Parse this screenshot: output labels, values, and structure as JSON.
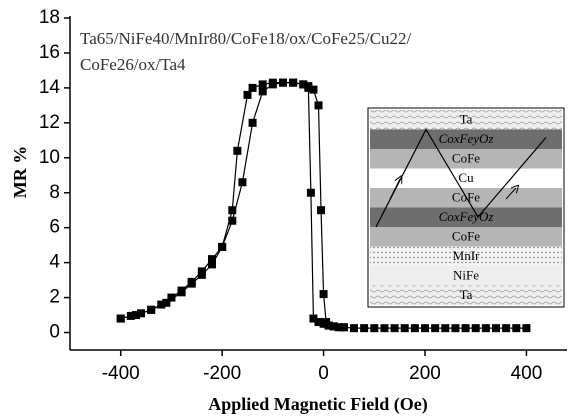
{
  "chart_data": {
    "type": "line",
    "x_label": "Applied Magnetic Field (Oe)",
    "y_label": "MR %",
    "annotation": [
      "Ta65/NiFe40/MnIr80/CoFe18/ox/CoFe25/Cu22/",
      "CoFe26/ox/Ta4"
    ],
    "inset_layers": [
      "Ta",
      "CoxFeyOz",
      "CoFe",
      "Cu",
      "CoFe",
      "CoxFeyOz",
      "CoFe",
      "MnIr",
      "NiFe",
      "Ta"
    ],
    "xlim": [
      -500,
      480
    ],
    "xticks": [
      -400,
      -200,
      0,
      200,
      400
    ],
    "ylim": [
      -1,
      18
    ],
    "yticks": [
      0,
      2,
      4,
      6,
      8,
      10,
      12,
      14,
      16,
      18
    ],
    "series": [
      {
        "color": "#000000",
        "x": [
          -400,
          -380,
          -360,
          -340,
          -320,
          -300,
          -280,
          -260,
          -240,
          -220,
          -200,
          -180,
          -160,
          -140,
          -120,
          -100,
          -80,
          -60,
          -40,
          -30,
          -20,
          -10,
          -5,
          0,
          5,
          10,
          20,
          40,
          60,
          80,
          100,
          120,
          140,
          160,
          180,
          200,
          220,
          240,
          260,
          280,
          300,
          320,
          340,
          360,
          380,
          400
        ],
        "values": [
          0.8,
          0.95,
          1.1,
          1.3,
          1.6,
          2.0,
          2.4,
          2.9,
          3.5,
          4.2,
          4.9,
          6.4,
          8.6,
          12.0,
          13.8,
          14.2,
          14.3,
          14.3,
          14.2,
          14.1,
          13.9,
          13.0,
          7.0,
          2.2,
          0.6,
          0.4,
          0.35,
          0.3,
          0.25,
          0.25,
          0.25,
          0.25,
          0.25,
          0.25,
          0.25,
          0.25,
          0.25,
          0.25,
          0.25,
          0.25,
          0.25,
          0.25,
          0.25,
          0.25,
          0.25,
          0.25
        ]
      },
      {
        "color": "#000000",
        "x": [
          -400,
          -370,
          -340,
          -310,
          -280,
          -260,
          -240,
          -220,
          -200,
          -180,
          -170,
          -150,
          -140,
          -120,
          -100,
          -80,
          -60,
          -40,
          -30,
          -25,
          -20,
          -10,
          0,
          10,
          20,
          30,
          40
        ],
        "values": [
          0.8,
          1.0,
          1.3,
          1.7,
          2.3,
          2.8,
          3.3,
          3.9,
          4.9,
          7.0,
          10.4,
          13.6,
          14.0,
          14.2,
          14.3,
          14.3,
          14.3,
          14.2,
          14.0,
          8.0,
          0.8,
          0.6,
          0.5,
          0.4,
          0.35,
          0.3,
          0.3
        ]
      }
    ]
  }
}
